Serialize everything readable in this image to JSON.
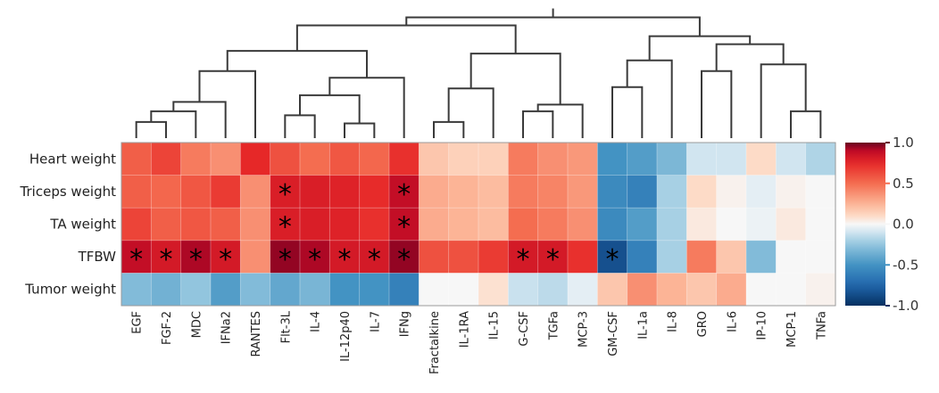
{
  "chart_data": {
    "type": "heatmap",
    "title": "",
    "rows": [
      "Heart weight",
      "Triceps weight",
      "TA weight",
      "TFBW",
      "Tumor weight"
    ],
    "columns": [
      "EGF",
      "FGF-2",
      "MDC",
      "IFNa2",
      "RANTES",
      "Flt-3L",
      "IL-4",
      "IL-12p40",
      "IL-7",
      "IFNg",
      "Fractalkine",
      "IL-1RA",
      "IL-15",
      "G-CSF",
      "TGFa",
      "MCP-3",
      "GM-CSF",
      "IL-1a",
      "IL-8",
      "GRO",
      "IL-6",
      "IP-10",
      "MCP-1",
      "TNFa"
    ],
    "values": [
      [
        0.55,
        0.65,
        0.45,
        0.38,
        0.75,
        0.6,
        0.5,
        0.58,
        0.52,
        0.72,
        0.18,
        0.14,
        0.14,
        0.45,
        0.38,
        0.35,
        -0.5,
        -0.45,
        -0.32,
        -0.1,
        -0.1,
        0.1,
        -0.1,
        -0.18
      ],
      [
        0.55,
        0.52,
        0.58,
        0.68,
        0.38,
        0.8,
        0.8,
        0.78,
        0.74,
        0.88,
        0.28,
        0.25,
        0.22,
        0.45,
        0.42,
        0.35,
        -0.55,
        -0.6,
        -0.2,
        0.1,
        0.02,
        -0.05,
        0.02,
        0.0
      ],
      [
        0.65,
        0.55,
        0.58,
        0.55,
        0.38,
        0.8,
        0.8,
        0.78,
        0.72,
        0.88,
        0.28,
        0.25,
        0.22,
        0.5,
        0.45,
        0.38,
        -0.55,
        -0.45,
        -0.2,
        0.05,
        0.0,
        -0.03,
        0.05,
        0.0
      ],
      [
        0.88,
        0.82,
        0.92,
        0.82,
        0.38,
        0.95,
        0.92,
        0.82,
        0.82,
        0.95,
        0.6,
        0.6,
        0.68,
        0.82,
        0.82,
        0.72,
        -0.85,
        -0.6,
        -0.2,
        0.45,
        0.18,
        -0.3,
        0.0,
        0.0
      ],
      [
        -0.3,
        -0.35,
        -0.25,
        -0.45,
        -0.3,
        -0.4,
        -0.33,
        -0.5,
        -0.5,
        -0.6,
        0.0,
        0.0,
        0.08,
        -0.12,
        -0.15,
        -0.05,
        0.18,
        0.38,
        0.25,
        0.18,
        0.28,
        0.0,
        0.0,
        0.02
      ]
    ],
    "significant": [
      [
        1,
        5
      ],
      [
        1,
        9
      ],
      [
        2,
        5
      ],
      [
        2,
        9
      ],
      [
        3,
        0
      ],
      [
        3,
        1
      ],
      [
        3,
        2
      ],
      [
        3,
        3
      ],
      [
        3,
        5
      ],
      [
        3,
        6
      ],
      [
        3,
        7
      ],
      [
        3,
        8
      ],
      [
        3,
        9
      ],
      [
        3,
        13
      ],
      [
        3,
        14
      ],
      [
        3,
        16
      ]
    ],
    "significance_marker": "*",
    "colorbar": {
      "range": [
        -1.0,
        1.0
      ],
      "ticks": [
        "1.0",
        "0.5",
        "0.0",
        "-0.5",
        "-1.0"
      ],
      "tick_values": [
        1.0,
        0.5,
        0.0,
        -0.5,
        -1.0
      ],
      "colors": {
        "neg": "#053061",
        "mid": "#f7f7f7",
        "pos": "#67001f"
      }
    },
    "dendrogram": {
      "orientation": "top",
      "merges": [
        {
          "id": "a",
          "children": [
            0,
            1
          ],
          "height": 0.12
        },
        {
          "id": "b",
          "children": [
            "a",
            2
          ],
          "height": 0.2
        },
        {
          "id": "c",
          "children": [
            "b",
            3
          ],
          "height": 0.27
        },
        {
          "id": "d",
          "children": [
            "c",
            4
          ],
          "height": 0.5
        },
        {
          "id": "e",
          "children": [
            7,
            8
          ],
          "height": 0.11
        },
        {
          "id": "f",
          "children": [
            5,
            6
          ],
          "height": 0.17
        },
        {
          "id": "g",
          "children": [
            "f",
            "e"
          ],
          "height": 0.32
        },
        {
          "id": "h",
          "children": [
            "g",
            9
          ],
          "height": 0.45
        },
        {
          "id": "i",
          "children": [
            "d",
            "h"
          ],
          "height": 0.65
        },
        {
          "id": "j",
          "children": [
            10,
            11
          ],
          "height": 0.12
        },
        {
          "id": "k",
          "children": [
            "j",
            12
          ],
          "height": 0.37
        },
        {
          "id": "l",
          "children": [
            13,
            14
          ],
          "height": 0.2
        },
        {
          "id": "m",
          "children": [
            "l",
            15
          ],
          "height": 0.25
        },
        {
          "id": "n",
          "children": [
            "k",
            "m"
          ],
          "height": 0.63
        },
        {
          "id": "o",
          "children": [
            "i",
            "n"
          ],
          "height": 0.84
        },
        {
          "id": "p",
          "children": [
            16,
            17
          ],
          "height": 0.38
        },
        {
          "id": "q",
          "children": [
            "p",
            18
          ],
          "height": 0.58
        },
        {
          "id": "r",
          "children": [
            19,
            20
          ],
          "height": 0.5
        },
        {
          "id": "s",
          "children": [
            22,
            23
          ],
          "height": 0.2
        },
        {
          "id": "t",
          "children": [
            21,
            "s"
          ],
          "height": 0.55
        },
        {
          "id": "u",
          "children": [
            "r",
            "t"
          ],
          "height": 0.7
        },
        {
          "id": "v",
          "children": [
            "q",
            "u"
          ],
          "height": 0.76
        },
        {
          "id": "w",
          "children": [
            "o",
            "v"
          ],
          "height": 0.9
        }
      ]
    }
  }
}
